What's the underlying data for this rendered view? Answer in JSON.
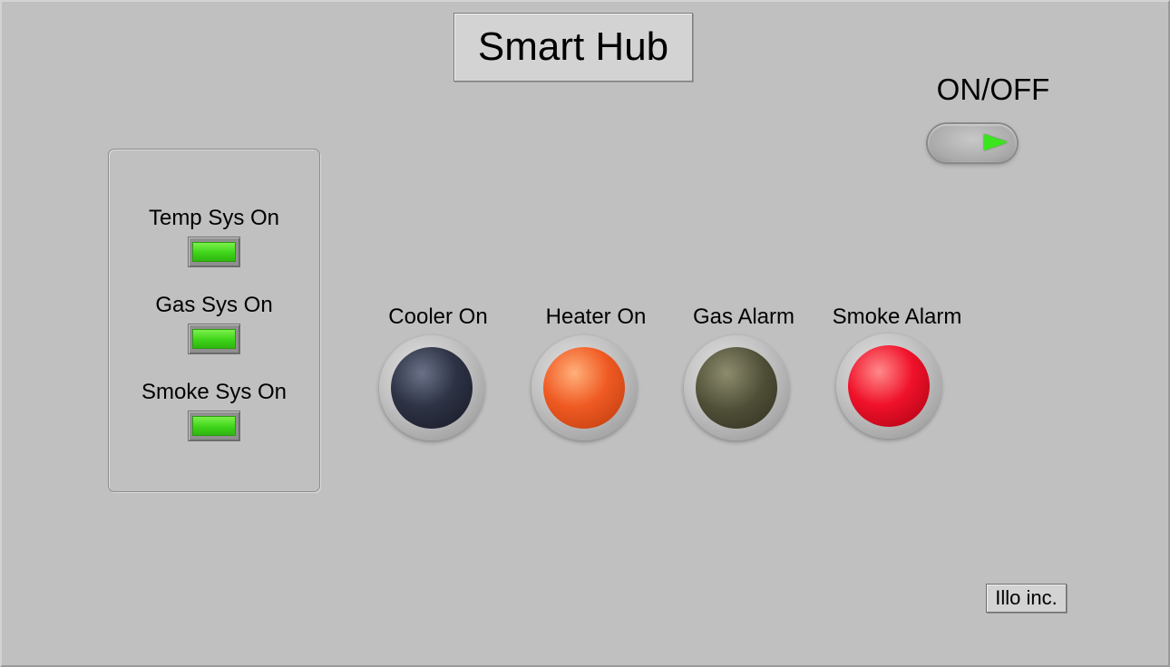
{
  "header": {
    "title": "Smart Hub"
  },
  "power": {
    "label": "ON/OFF",
    "state": "on",
    "indicator_color": "#39e61d"
  },
  "systems": [
    {
      "label": "Temp Sys On",
      "state": "on",
      "color": "#3fd41a"
    },
    {
      "label": "Gas Sys On",
      "state": "on",
      "color": "#3fd41a"
    },
    {
      "label": "Smoke Sys On",
      "state": "on",
      "color": "#3fd41a"
    }
  ],
  "indicators": [
    {
      "label": "Cooler On",
      "state": "off",
      "color": "#2e3345"
    },
    {
      "label": "Heater On",
      "state": "on",
      "color": "#f05a23"
    },
    {
      "label": "Gas Alarm",
      "state": "off",
      "color": "#4f4f38"
    },
    {
      "label": "Smoke Alarm",
      "state": "on",
      "color": "#f0122b"
    }
  ],
  "footer": {
    "company": "Illo inc."
  }
}
